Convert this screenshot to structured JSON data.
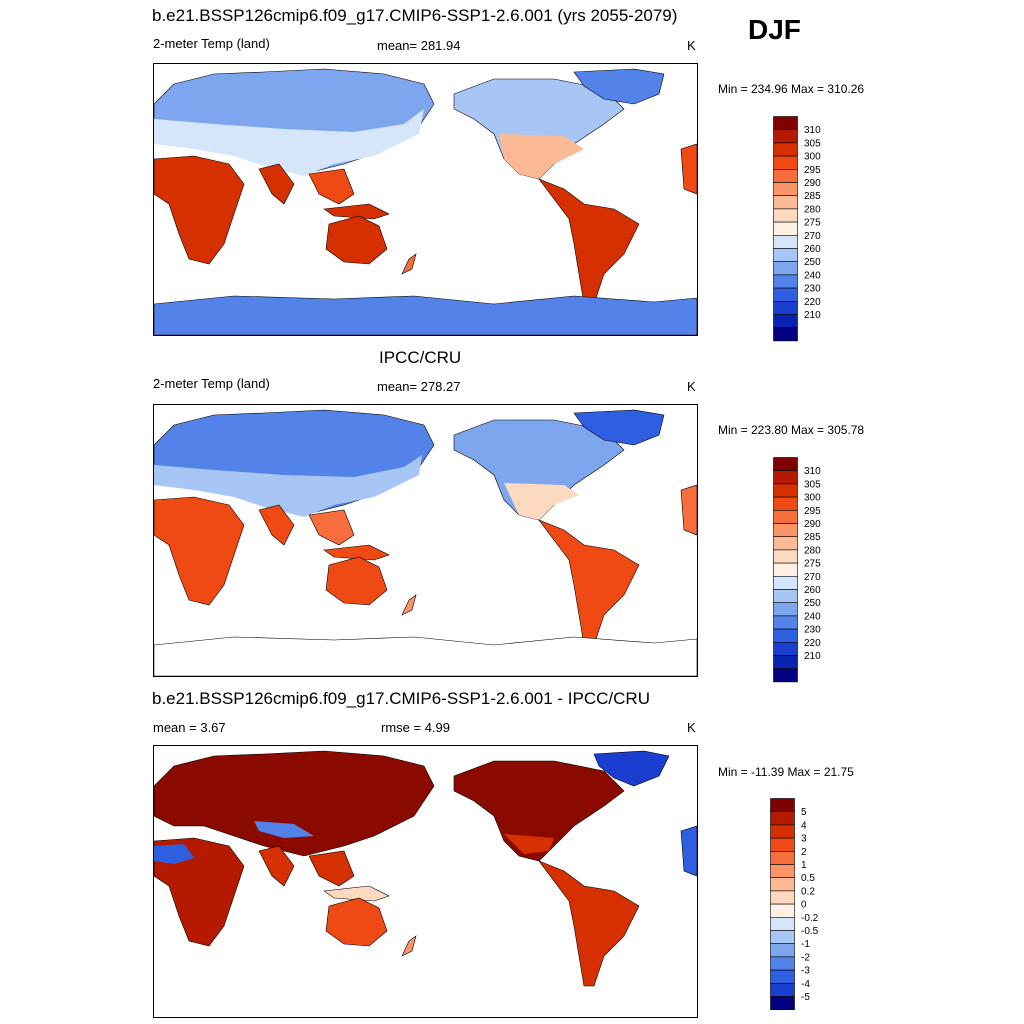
{
  "season": "DJF",
  "panels": [
    {
      "title": "b.e21.BSSP126cmip6.f09_g17.CMIP6-SSP1-2.6.001 (yrs 2055-2079)",
      "left_label": "2-meter Temp (land)",
      "center_label": "mean= 281.94",
      "units": "K",
      "minmax": "Min = 234.96 Max = 310.26"
    },
    {
      "title": "IPCC/CRU",
      "left_label": "2-meter Temp (land)",
      "center_label": "mean= 278.27",
      "units": "K",
      "minmax": "Min = 223.80 Max = 305.78"
    },
    {
      "title": "b.e21.BSSP126cmip6.f09_g17.CMIP6-SSP1-2.6.001 - IPCC/CRU",
      "left_label": "mean =   3.67",
      "center_label": "rmse =   4.99",
      "units": "K",
      "minmax": "Min = -11.39 Max =  21.75"
    }
  ],
  "temp_colorbar": {
    "labels": [
      "310",
      "305",
      "300",
      "295",
      "290",
      "285",
      "280",
      "275",
      "270",
      "260",
      "250",
      "240",
      "230",
      "220",
      "210"
    ],
    "colors": [
      "#7f0000",
      "#b51a00",
      "#d63000",
      "#f04a14",
      "#f76d3c",
      "#fb9467",
      "#fcb995",
      "#fdd9bf",
      "#fef1e4",
      "#d5e5fa",
      "#a7c6f5",
      "#7ea6ef",
      "#5382e8",
      "#2e5fe0",
      "#1a3fd0",
      "#0a22b0",
      "#000080"
    ]
  },
  "diff_colorbar": {
    "labels": [
      "5",
      "4",
      "3",
      "2",
      "1",
      "0.5",
      "0.2",
      "0",
      "-0.2",
      "-0.5",
      "-1",
      "-2",
      "-3",
      "-4",
      "-5"
    ],
    "colors": [
      "#7f0000",
      "#b51a00",
      "#d63000",
      "#f04a14",
      "#f76d3c",
      "#fb9467",
      "#fcb995",
      "#fdd9bf",
      "#fef1e4",
      "#d5e5fa",
      "#a7c6f5",
      "#7ea6ef",
      "#5382e8",
      "#2e5fe0",
      "#1a3fd0",
      "#000080"
    ]
  }
}
